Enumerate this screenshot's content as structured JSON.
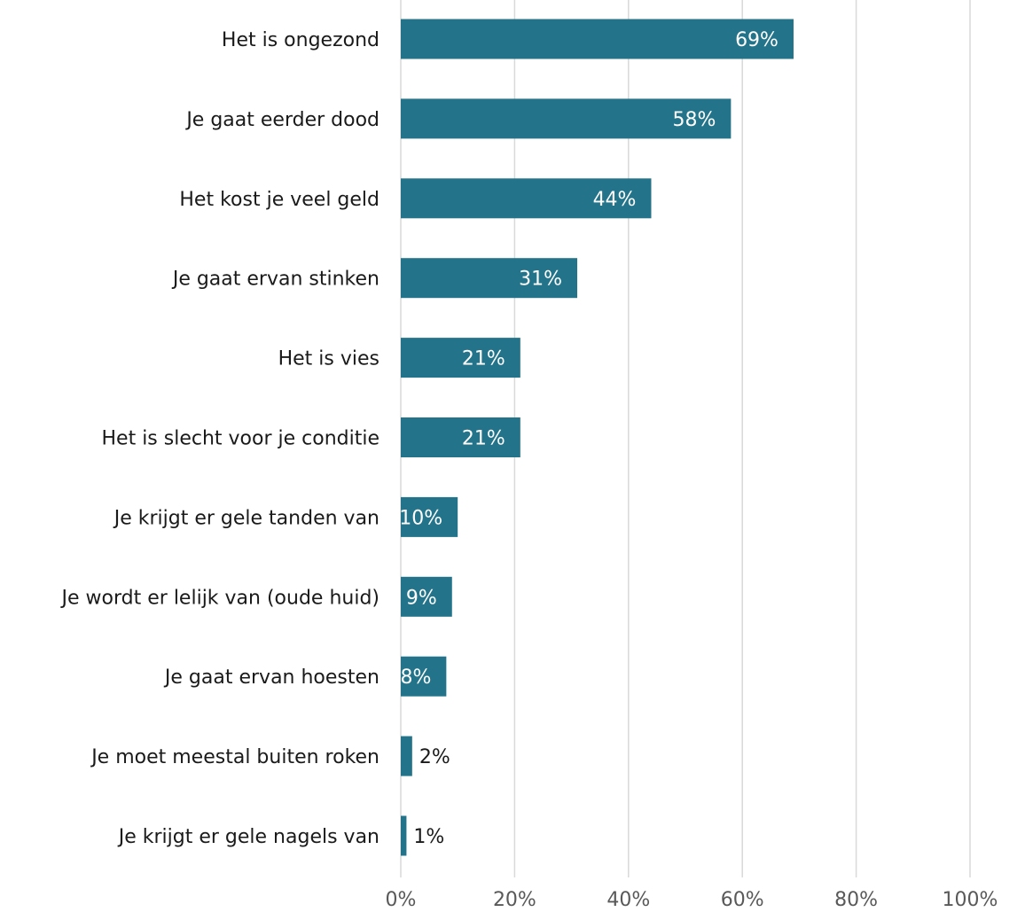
{
  "chart_data": {
    "type": "bar",
    "orientation": "horizontal",
    "categories": [
      "Het is ongezond",
      "Je gaat eerder dood",
      "Het kost je veel geld",
      "Je gaat ervan stinken",
      "Het is vies",
      "Het is slecht voor je conditie",
      "Je krijgt er gele tanden van",
      "Je wordt er lelijk van (oude huid)",
      "Je gaat ervan hoesten",
      "Je moet meestal buiten roken",
      "Je krijgt er gele nagels van"
    ],
    "values": [
      69,
      58,
      44,
      31,
      21,
      21,
      10,
      9,
      8,
      2,
      1
    ],
    "value_labels": [
      "69%",
      "58%",
      "44%",
      "31%",
      "21%",
      "21%",
      "10%",
      "9%",
      "8%",
      "2%",
      "1%"
    ],
    "title": "",
    "xlabel": "",
    "ylabel": "",
    "xlim": [
      0,
      100
    ],
    "x_ticks": [
      0,
      20,
      40,
      60,
      80,
      100
    ],
    "x_tick_labels": [
      "0%",
      "20%",
      "40%",
      "60%",
      "80%",
      "100%"
    ],
    "grid": true,
    "legend": "none",
    "colors": {
      "bar": "#23748a",
      "label_inside": "#ffffff",
      "label_outside": "#1a1a1a",
      "grid": "#d9d9d9"
    }
  }
}
